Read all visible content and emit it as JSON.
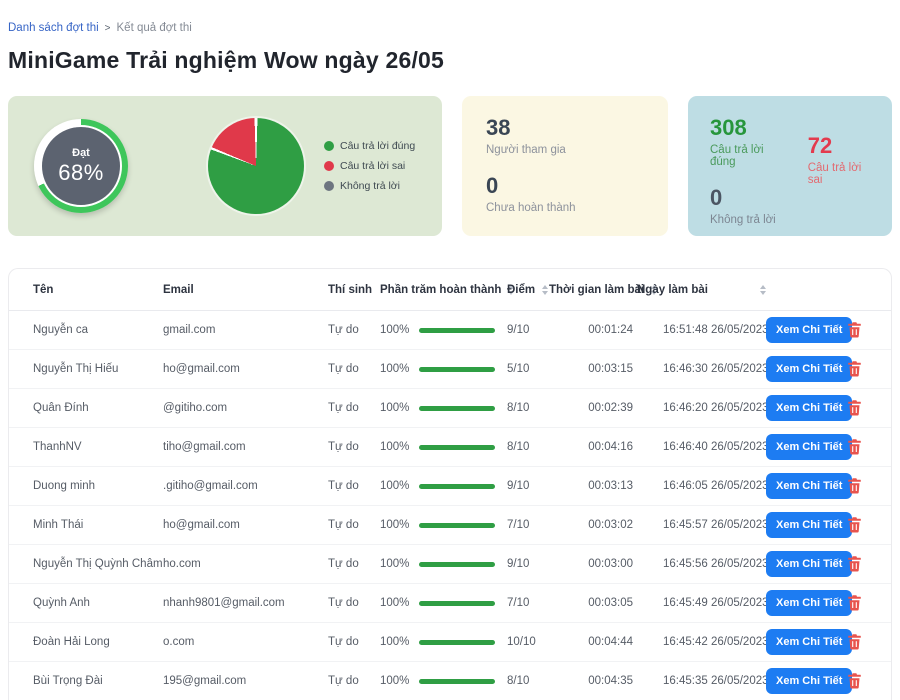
{
  "breadcrumb": {
    "link": "Danh sách đợt thi",
    "separator": ">",
    "current": "Kết quả đợt thi"
  },
  "page_title": "MiniGame Trải nghiệm Wow ngày 26/05",
  "summary": {
    "gauge": {
      "label": "Đạt",
      "value": "68%",
      "percent": 68,
      "ring_color": "#3ec65b",
      "rest_color": "#ffffff",
      "center_color": "#5c6370"
    },
    "pie_legend": [
      {
        "label": "Câu trả lời đúng",
        "color": "#2f9e44"
      },
      {
        "label": "Câu trả lời sai",
        "color": "#e0394a"
      },
      {
        "label": "Không trả lời",
        "color": "#6d7580"
      }
    ],
    "participants": {
      "value": "38",
      "label": "Người tham gia"
    },
    "unfinished": {
      "value": "0",
      "label": "Chưa hoàn thành"
    },
    "correct": {
      "value": "308",
      "label": "Câu trả lời đúng"
    },
    "wrong": {
      "value": "72",
      "label": "Câu trả lời sai"
    },
    "no_answer": {
      "value": "0",
      "label": "Không trả lời"
    }
  },
  "chart_data": [
    {
      "type": "pie",
      "variant": "gauge-donut",
      "title": "Đạt",
      "value_pct": 68,
      "remainder_pct": 32,
      "colors": {
        "fill": "#3ec65b",
        "remainder": "#ffffff",
        "center": "#5c6370"
      }
    },
    {
      "type": "pie",
      "labels": [
        "Câu trả lời đúng",
        "Câu trả lời sai",
        "Không trả lời"
      ],
      "values": [
        308,
        72,
        0
      ],
      "percents": [
        81,
        19,
        0
      ],
      "colors": [
        "#2f9e44",
        "#e0394a",
        "#6d7580"
      ],
      "legend_position": "right"
    }
  ],
  "table": {
    "headers": {
      "name": "Tên",
      "email": "Email",
      "candidate": "Thí sinh",
      "percent": "Phần trăm hoàn thành",
      "score": "Điểm",
      "duration": "Thời gian làm bài",
      "date": "Ngày làm bài"
    },
    "action_label": "Xem Chi Tiết",
    "rows": [
      {
        "name": "Nguyễn ca",
        "email": "gmail.com",
        "candidate": "Tự do",
        "percent": "100%",
        "score": "9/10",
        "duration": "00:01:24",
        "date": "16:51:48 26/05/2023"
      },
      {
        "name": "Nguyễn Thị Hiếu",
        "email": "ho@gmail.com",
        "candidate": "Tự do",
        "percent": "100%",
        "score": "5/10",
        "duration": "00:03:15",
        "date": "16:46:30 26/05/2023"
      },
      {
        "name": "Quân Đính",
        "email": "@gitiho.com",
        "candidate": "Tự do",
        "percent": "100%",
        "score": "8/10",
        "duration": "00:02:39",
        "date": "16:46:20 26/05/2023"
      },
      {
        "name": "ThanhNV",
        "email": "tiho@gmail.com",
        "candidate": "Tự do",
        "percent": "100%",
        "score": "8/10",
        "duration": "00:04:16",
        "date": "16:46:40 26/05/2023"
      },
      {
        "name": "Duong minh",
        "email": ".gitiho@gmail.com",
        "candidate": "Tự do",
        "percent": "100%",
        "score": "9/10",
        "duration": "00:03:13",
        "date": "16:46:05 26/05/2023"
      },
      {
        "name": "Minh Thái",
        "email": "ho@gmail.com",
        "candidate": "Tự do",
        "percent": "100%",
        "score": "7/10",
        "duration": "00:03:02",
        "date": "16:45:57 26/05/2023"
      },
      {
        "name": "Nguyễn Thị Quỳnh Châm",
        "email": "ho.com",
        "candidate": "Tự do",
        "percent": "100%",
        "score": "9/10",
        "duration": "00:03:00",
        "date": "16:45:56 26/05/2023"
      },
      {
        "name": "Quỳnh Anh",
        "email": "nhanh9801@gmail.com",
        "candidate": "Tự do",
        "percent": "100%",
        "score": "7/10",
        "duration": "00:03:05",
        "date": "16:45:49 26/05/2023"
      },
      {
        "name": "Đoàn Hải Long",
        "email": "o.com",
        "candidate": "Tự do",
        "percent": "100%",
        "score": "10/10",
        "duration": "00:04:44",
        "date": "16:45:42 26/05/2023"
      },
      {
        "name": "Bùi Trọng Đài",
        "email": "195@gmail.com",
        "candidate": "Tự do",
        "percent": "100%",
        "score": "8/10",
        "duration": "00:04:35",
        "date": "16:45:35 26/05/2023"
      }
    ]
  }
}
